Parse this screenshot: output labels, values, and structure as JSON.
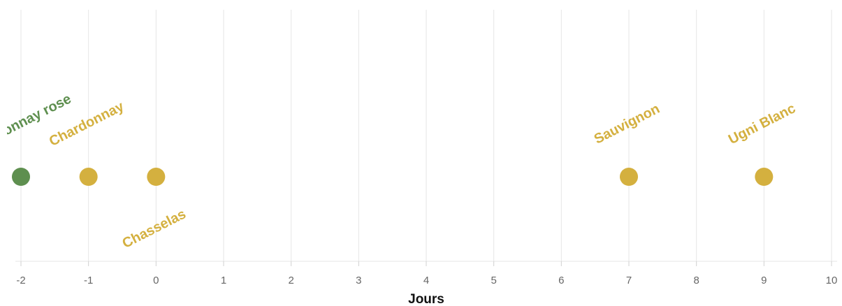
{
  "chart_data": {
    "type": "scatter",
    "xlabel": "Jours",
    "ylabel": "",
    "xlim": [
      -2,
      10
    ],
    "x_ticks": [
      "-2",
      "-1",
      "0",
      "1",
      "2",
      "3",
      "4",
      "5",
      "6",
      "7",
      "8",
      "9",
      "10"
    ],
    "grid": true,
    "legend": "none",
    "colors": {
      "green": "#5e8f4f",
      "gold": "#d4b03f"
    },
    "points": [
      {
        "x": -2,
        "label": "Chardonnay rose",
        "color": "#5e8f4f",
        "label_position": "above"
      },
      {
        "x": -1,
        "label": "Chardonnay",
        "color": "#d4b03f",
        "label_position": "above"
      },
      {
        "x": 0,
        "label": "Chasselas",
        "color": "#d4b03f",
        "label_position": "below"
      },
      {
        "x": 7,
        "label": "Sauvignon",
        "color": "#d4b03f",
        "label_position": "above"
      },
      {
        "x": 9,
        "label": "Ugni Blanc",
        "color": "#d4b03f",
        "label_position": "above"
      }
    ]
  }
}
